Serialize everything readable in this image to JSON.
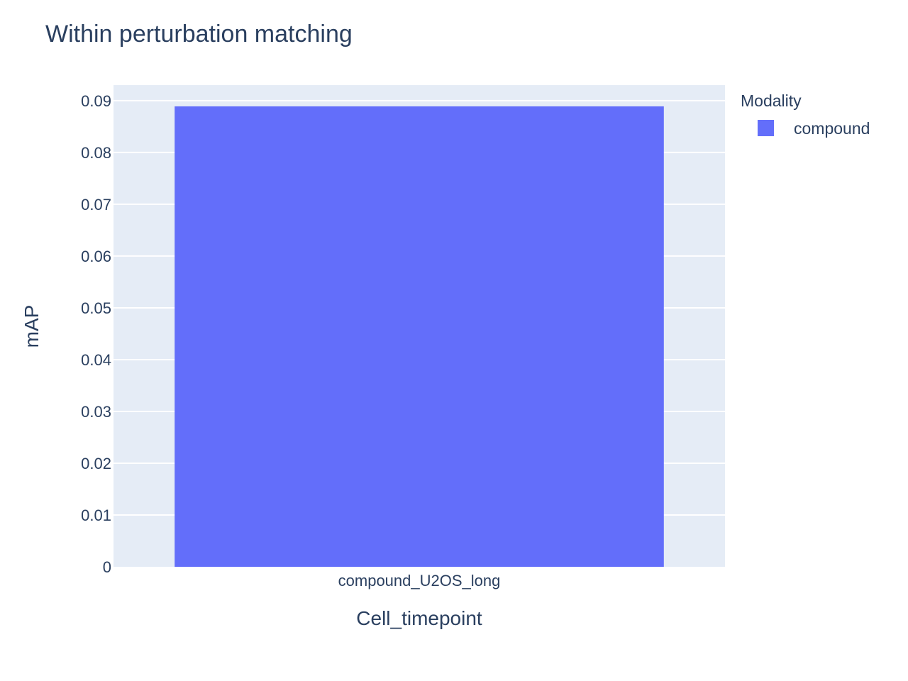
{
  "chart_data": {
    "type": "bar",
    "title": "Within perturbation matching",
    "xlabel": "Cell_timepoint",
    "ylabel": "mAP",
    "categories": [
      "compound_U2OS_long"
    ],
    "series": [
      {
        "name": "compound",
        "values": [
          0.0889
        ],
        "color": "#636efa"
      }
    ],
    "ylim": [
      0,
      0.093
    ],
    "yticks": [
      0,
      0.01,
      0.02,
      0.03,
      0.04,
      0.05,
      0.06,
      0.07,
      0.08,
      0.09
    ],
    "ytick_labels": [
      "0",
      "0.01",
      "0.02",
      "0.03",
      "0.04",
      "0.05",
      "0.06",
      "0.07",
      "0.08",
      "0.09"
    ],
    "grid": true,
    "legend": {
      "title": "Modality",
      "placement": "top-right"
    },
    "colors": {
      "plot_background": "#e5ecf6",
      "grid": "#ffffff",
      "text": "#2a3f5f"
    }
  }
}
